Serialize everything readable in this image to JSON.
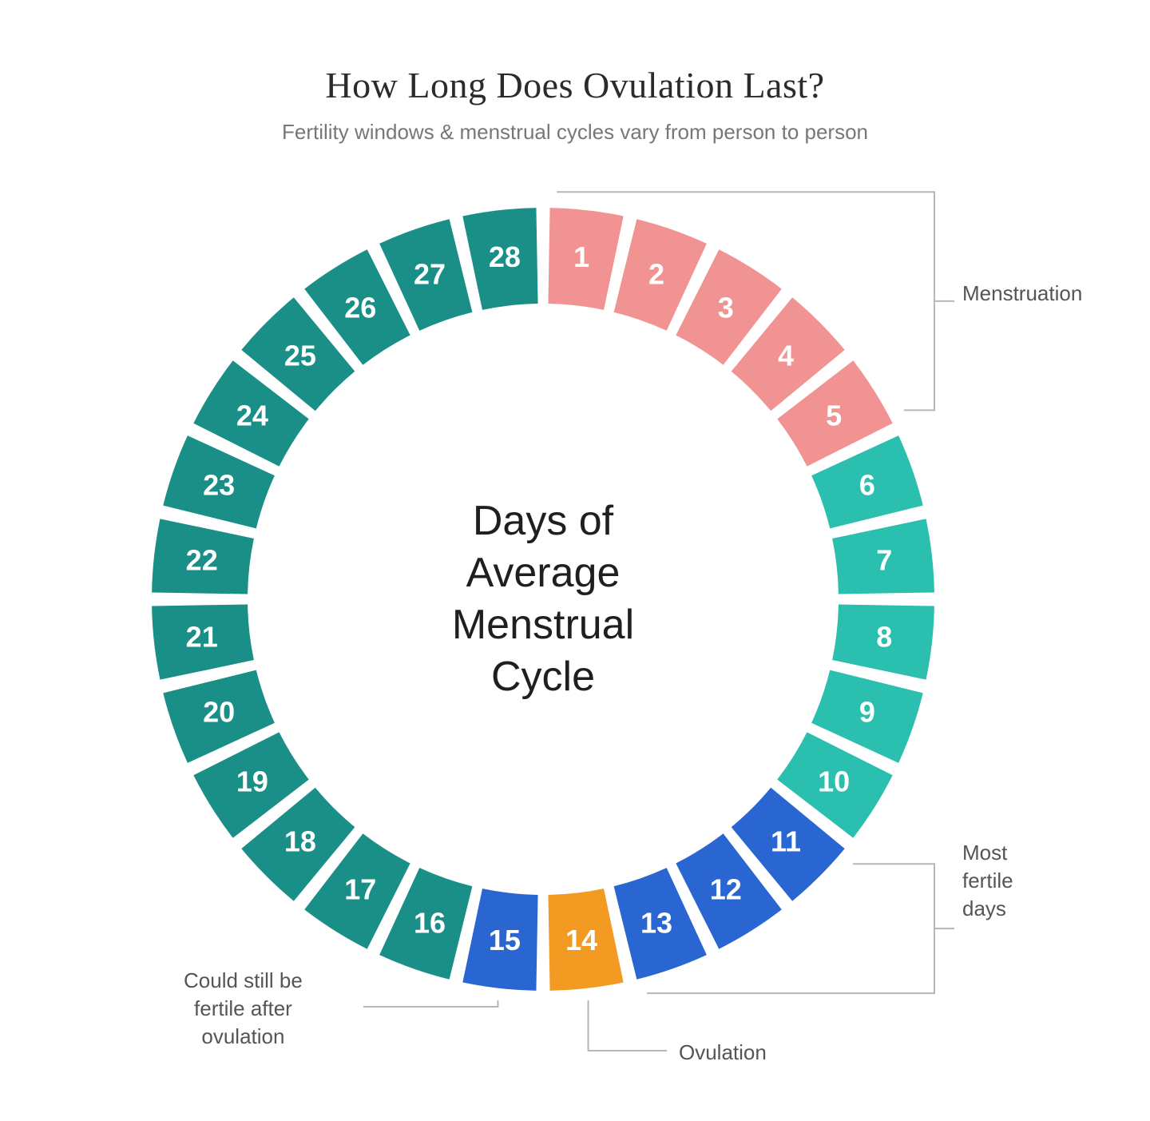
{
  "header": {
    "title": "How Long Does Ovulation Last?",
    "subtitle": "Fertility windows & menstrual cycles vary from person to person"
  },
  "chart": {
    "type": "segmented-ring",
    "center_label": "Days of\nAverage\nMenstrual\nCycle",
    "center_fontsize": 52,
    "total_days": 28,
    "outer_radius": 490,
    "inner_radius": 370,
    "gap_deg": 2.0,
    "background_color": "#ffffff",
    "number_color": "#ffffff",
    "number_fontsize": 36,
    "colors": {
      "menstruation": "#f29393",
      "regular_cyan": "#2bbfb0",
      "regular_teal": "#1a8f88",
      "fertile_blue": "#2a66d1",
      "ovulation_orange": "#f29a22"
    },
    "segments": [
      {
        "day": 1,
        "color_key": "menstruation",
        "phase": "menstruation"
      },
      {
        "day": 2,
        "color_key": "menstruation",
        "phase": "menstruation"
      },
      {
        "day": 3,
        "color_key": "menstruation",
        "phase": "menstruation"
      },
      {
        "day": 4,
        "color_key": "menstruation",
        "phase": "menstruation"
      },
      {
        "day": 5,
        "color_key": "menstruation",
        "phase": "menstruation"
      },
      {
        "day": 6,
        "color_key": "regular_cyan",
        "phase": "follicular"
      },
      {
        "day": 7,
        "color_key": "regular_cyan",
        "phase": "follicular"
      },
      {
        "day": 8,
        "color_key": "regular_cyan",
        "phase": "follicular"
      },
      {
        "day": 9,
        "color_key": "regular_cyan",
        "phase": "follicular"
      },
      {
        "day": 10,
        "color_key": "regular_cyan",
        "phase": "follicular"
      },
      {
        "day": 11,
        "color_key": "fertile_blue",
        "phase": "fertile"
      },
      {
        "day": 12,
        "color_key": "fertile_blue",
        "phase": "fertile"
      },
      {
        "day": 13,
        "color_key": "fertile_blue",
        "phase": "fertile"
      },
      {
        "day": 14,
        "color_key": "ovulation_orange",
        "phase": "ovulation"
      },
      {
        "day": 15,
        "color_key": "fertile_blue",
        "phase": "post_ovulation_fertile"
      },
      {
        "day": 16,
        "color_key": "regular_teal",
        "phase": "luteal"
      },
      {
        "day": 17,
        "color_key": "regular_teal",
        "phase": "luteal"
      },
      {
        "day": 18,
        "color_key": "regular_teal",
        "phase": "luteal"
      },
      {
        "day": 19,
        "color_key": "regular_teal",
        "phase": "luteal"
      },
      {
        "day": 20,
        "color_key": "regular_teal",
        "phase": "luteal"
      },
      {
        "day": 21,
        "color_key": "regular_teal",
        "phase": "luteal"
      },
      {
        "day": 22,
        "color_key": "regular_teal",
        "phase": "luteal"
      },
      {
        "day": 23,
        "color_key": "regular_teal",
        "phase": "luteal"
      },
      {
        "day": 24,
        "color_key": "regular_teal",
        "phase": "luteal"
      },
      {
        "day": 25,
        "color_key": "regular_teal",
        "phase": "luteal"
      },
      {
        "day": 26,
        "color_key": "regular_teal",
        "phase": "luteal"
      },
      {
        "day": 27,
        "color_key": "regular_teal",
        "phase": "luteal"
      },
      {
        "day": 28,
        "color_key": "regular_teal",
        "phase": "luteal"
      }
    ],
    "callouts": {
      "menstruation": {
        "label": "Menstruation",
        "from_day": 1,
        "to_day": 5
      },
      "fertile": {
        "label": "Most\nfertile\ndays",
        "from_day": 11,
        "to_day": 13
      },
      "ovulation": {
        "label": "Ovulation",
        "day": 14
      },
      "post_fertile": {
        "label": "Could still be\nfertile after\novulation",
        "day": 15
      }
    }
  }
}
